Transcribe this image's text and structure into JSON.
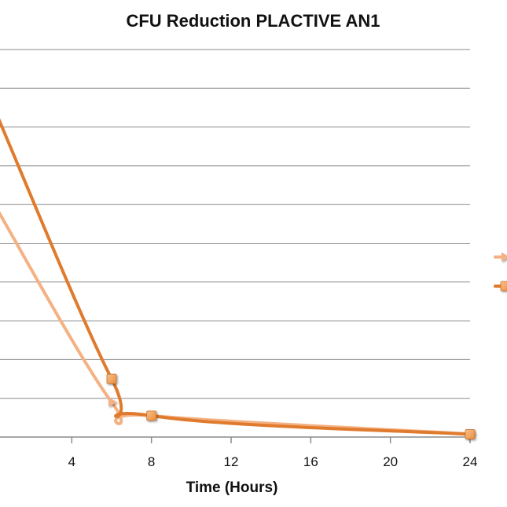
{
  "chart_data": {
    "type": "line",
    "title": "CFU Reduction PLACTIVE AN1",
    "xlabel": "Time (Hours)",
    "ylabel": "",
    "xlim": [
      0,
      24
    ],
    "ylim": [
      0,
      10
    ],
    "x_ticks": [
      4,
      8,
      12,
      16,
      20,
      24
    ],
    "y_grid_count": 10,
    "grid": true,
    "legend_position": "right",
    "series": [
      {
        "color": "#f4b183",
        "marker": "triangle",
        "x": [
          0,
          6,
          8,
          24
        ],
        "y": [
          6.1,
          0.9,
          0.55,
          0.08
        ]
      },
      {
        "color": "#e07b2e",
        "marker": "square",
        "x": [
          0,
          6,
          8,
          24
        ],
        "y": [
          8.6,
          1.5,
          0.55,
          0.07
        ]
      }
    ]
  }
}
